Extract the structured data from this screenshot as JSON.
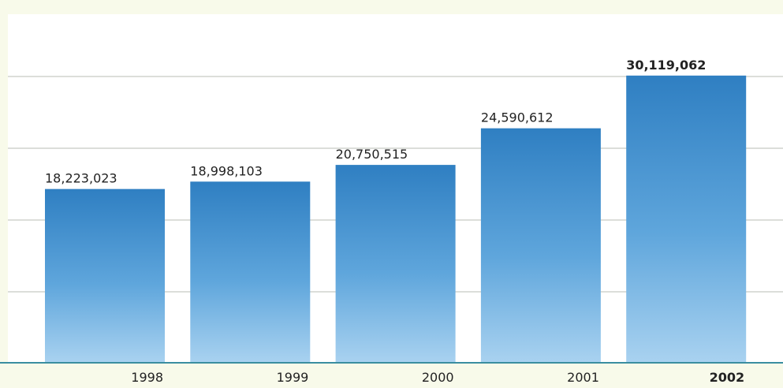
{
  "chart_data": {
    "type": "bar",
    "categories": [
      "1998",
      "1999",
      "2000",
      "2001",
      "2002"
    ],
    "values": [
      18223023,
      18998103,
      20750515,
      24590612,
      30119062
    ],
    "value_labels": [
      "18,223,023",
      "18,998,103",
      "20,750,515",
      "24,590,612",
      "30,119,062"
    ],
    "bold": [
      false,
      false,
      false,
      false,
      true
    ],
    "color": "#3f8fcf",
    "ylim": [
      0,
      33000000
    ]
  }
}
